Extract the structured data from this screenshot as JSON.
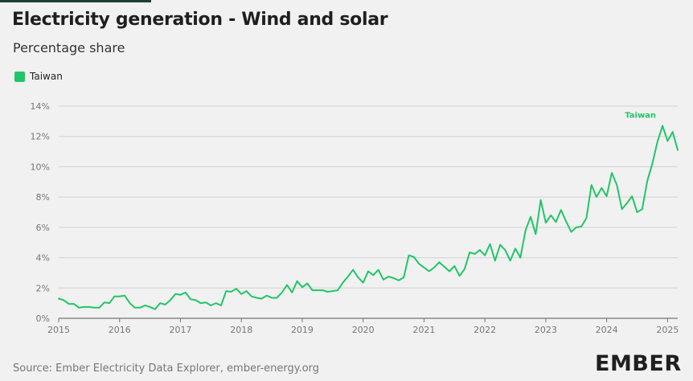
{
  "header": {
    "title": "Electricity generation - Wind and solar",
    "subtitle": "Percentage share"
  },
  "footer": {
    "source": "Source: Ember Electricity Data Explorer, ember-energy.org",
    "logo": "EMBER"
  },
  "colors": {
    "series": "#22c569",
    "grid": "#d2d2d2",
    "axis_text": "#777777"
  },
  "chart_data": {
    "type": "line",
    "title": "Electricity generation - Wind and solar",
    "subtitle": "Percentage share",
    "xlabel": "",
    "ylabel": "",
    "ylim": [
      0,
      14
    ],
    "xlim": [
      "2015-01",
      "2025-03"
    ],
    "y_ticks": [
      "0%",
      "2%",
      "4%",
      "6%",
      "8%",
      "10%",
      "12%",
      "14%"
    ],
    "x_ticks": [
      "2015",
      "2016",
      "2017",
      "2018",
      "2019",
      "2020",
      "2021",
      "2022",
      "2023",
      "2024",
      "2025"
    ],
    "grid": true,
    "legend_position": "top-left",
    "series": [
      {
        "name": "Taiwan",
        "end_label": "Taiwan",
        "x": [
          "2015-01",
          "2015-02",
          "2015-03",
          "2015-04",
          "2015-05",
          "2015-06",
          "2015-07",
          "2015-08",
          "2015-09",
          "2015-10",
          "2015-11",
          "2015-12",
          "2016-01",
          "2016-02",
          "2016-03",
          "2016-04",
          "2016-05",
          "2016-06",
          "2016-07",
          "2016-08",
          "2016-09",
          "2016-10",
          "2016-11",
          "2016-12",
          "2017-01",
          "2017-02",
          "2017-03",
          "2017-04",
          "2017-05",
          "2017-06",
          "2017-07",
          "2017-08",
          "2017-09",
          "2017-10",
          "2017-11",
          "2017-12",
          "2018-01",
          "2018-02",
          "2018-03",
          "2018-04",
          "2018-05",
          "2018-06",
          "2018-07",
          "2018-08",
          "2018-09",
          "2018-10",
          "2018-11",
          "2018-12",
          "2019-01",
          "2019-02",
          "2019-03",
          "2019-04",
          "2019-05",
          "2019-06",
          "2019-07",
          "2019-08",
          "2019-09",
          "2019-10",
          "2019-11",
          "2019-12",
          "2020-01",
          "2020-02",
          "2020-03",
          "2020-04",
          "2020-05",
          "2020-06",
          "2020-07",
          "2020-08",
          "2020-09",
          "2020-10",
          "2020-11",
          "2020-12",
          "2021-01",
          "2021-02",
          "2021-03",
          "2021-04",
          "2021-05",
          "2021-06",
          "2021-07",
          "2021-08",
          "2021-09",
          "2021-10",
          "2021-11",
          "2021-12",
          "2022-01",
          "2022-02",
          "2022-03",
          "2022-04",
          "2022-05",
          "2022-06",
          "2022-07",
          "2022-08",
          "2022-09",
          "2022-10",
          "2022-11",
          "2022-12",
          "2023-01",
          "2023-02",
          "2023-03",
          "2023-04",
          "2023-05",
          "2023-06",
          "2023-07",
          "2023-08",
          "2023-09",
          "2023-10",
          "2023-11",
          "2023-12",
          "2024-01",
          "2024-02",
          "2024-03",
          "2024-04",
          "2024-05",
          "2024-06",
          "2024-07",
          "2024-08",
          "2024-09",
          "2024-10",
          "2024-11",
          "2024-12",
          "2025-01",
          "2025-02",
          "2025-03"
        ],
        "values": [
          1.3,
          1.2,
          0.95,
          0.95,
          0.7,
          0.75,
          0.75,
          0.7,
          0.7,
          1.05,
          1.0,
          1.45,
          1.45,
          1.5,
          1.0,
          0.7,
          0.7,
          0.85,
          0.75,
          0.6,
          1.0,
          0.9,
          1.2,
          1.6,
          1.55,
          1.7,
          1.25,
          1.2,
          1.0,
          1.05,
          0.85,
          1.0,
          0.85,
          1.8,
          1.75,
          1.95,
          1.6,
          1.8,
          1.45,
          1.35,
          1.3,
          1.5,
          1.35,
          1.35,
          1.7,
          2.2,
          1.7,
          2.45,
          2.05,
          2.3,
          1.85,
          1.85,
          1.85,
          1.75,
          1.8,
          1.85,
          2.35,
          2.75,
          3.2,
          2.7,
          2.35,
          3.1,
          2.85,
          3.2,
          2.55,
          2.75,
          2.65,
          2.5,
          2.7,
          4.15,
          4.05,
          3.6,
          3.35,
          3.1,
          3.35,
          3.7,
          3.4,
          3.1,
          3.45,
          2.8,
          3.25,
          4.35,
          4.25,
          4.5,
          4.15,
          4.9,
          3.8,
          4.85,
          4.5,
          3.8,
          4.6,
          4.0,
          5.8,
          6.7,
          5.55,
          7.8,
          6.3,
          6.8,
          6.35,
          7.15,
          6.4,
          5.7,
          6.0,
          6.05,
          6.6,
          8.8,
          8.0,
          8.6,
          8.05,
          9.6,
          8.8,
          7.2,
          7.6,
          8.05,
          7.0,
          7.2,
          9.05,
          10.2,
          11.65,
          12.7,
          11.7,
          12.3,
          11.1
        ]
      }
    ]
  }
}
